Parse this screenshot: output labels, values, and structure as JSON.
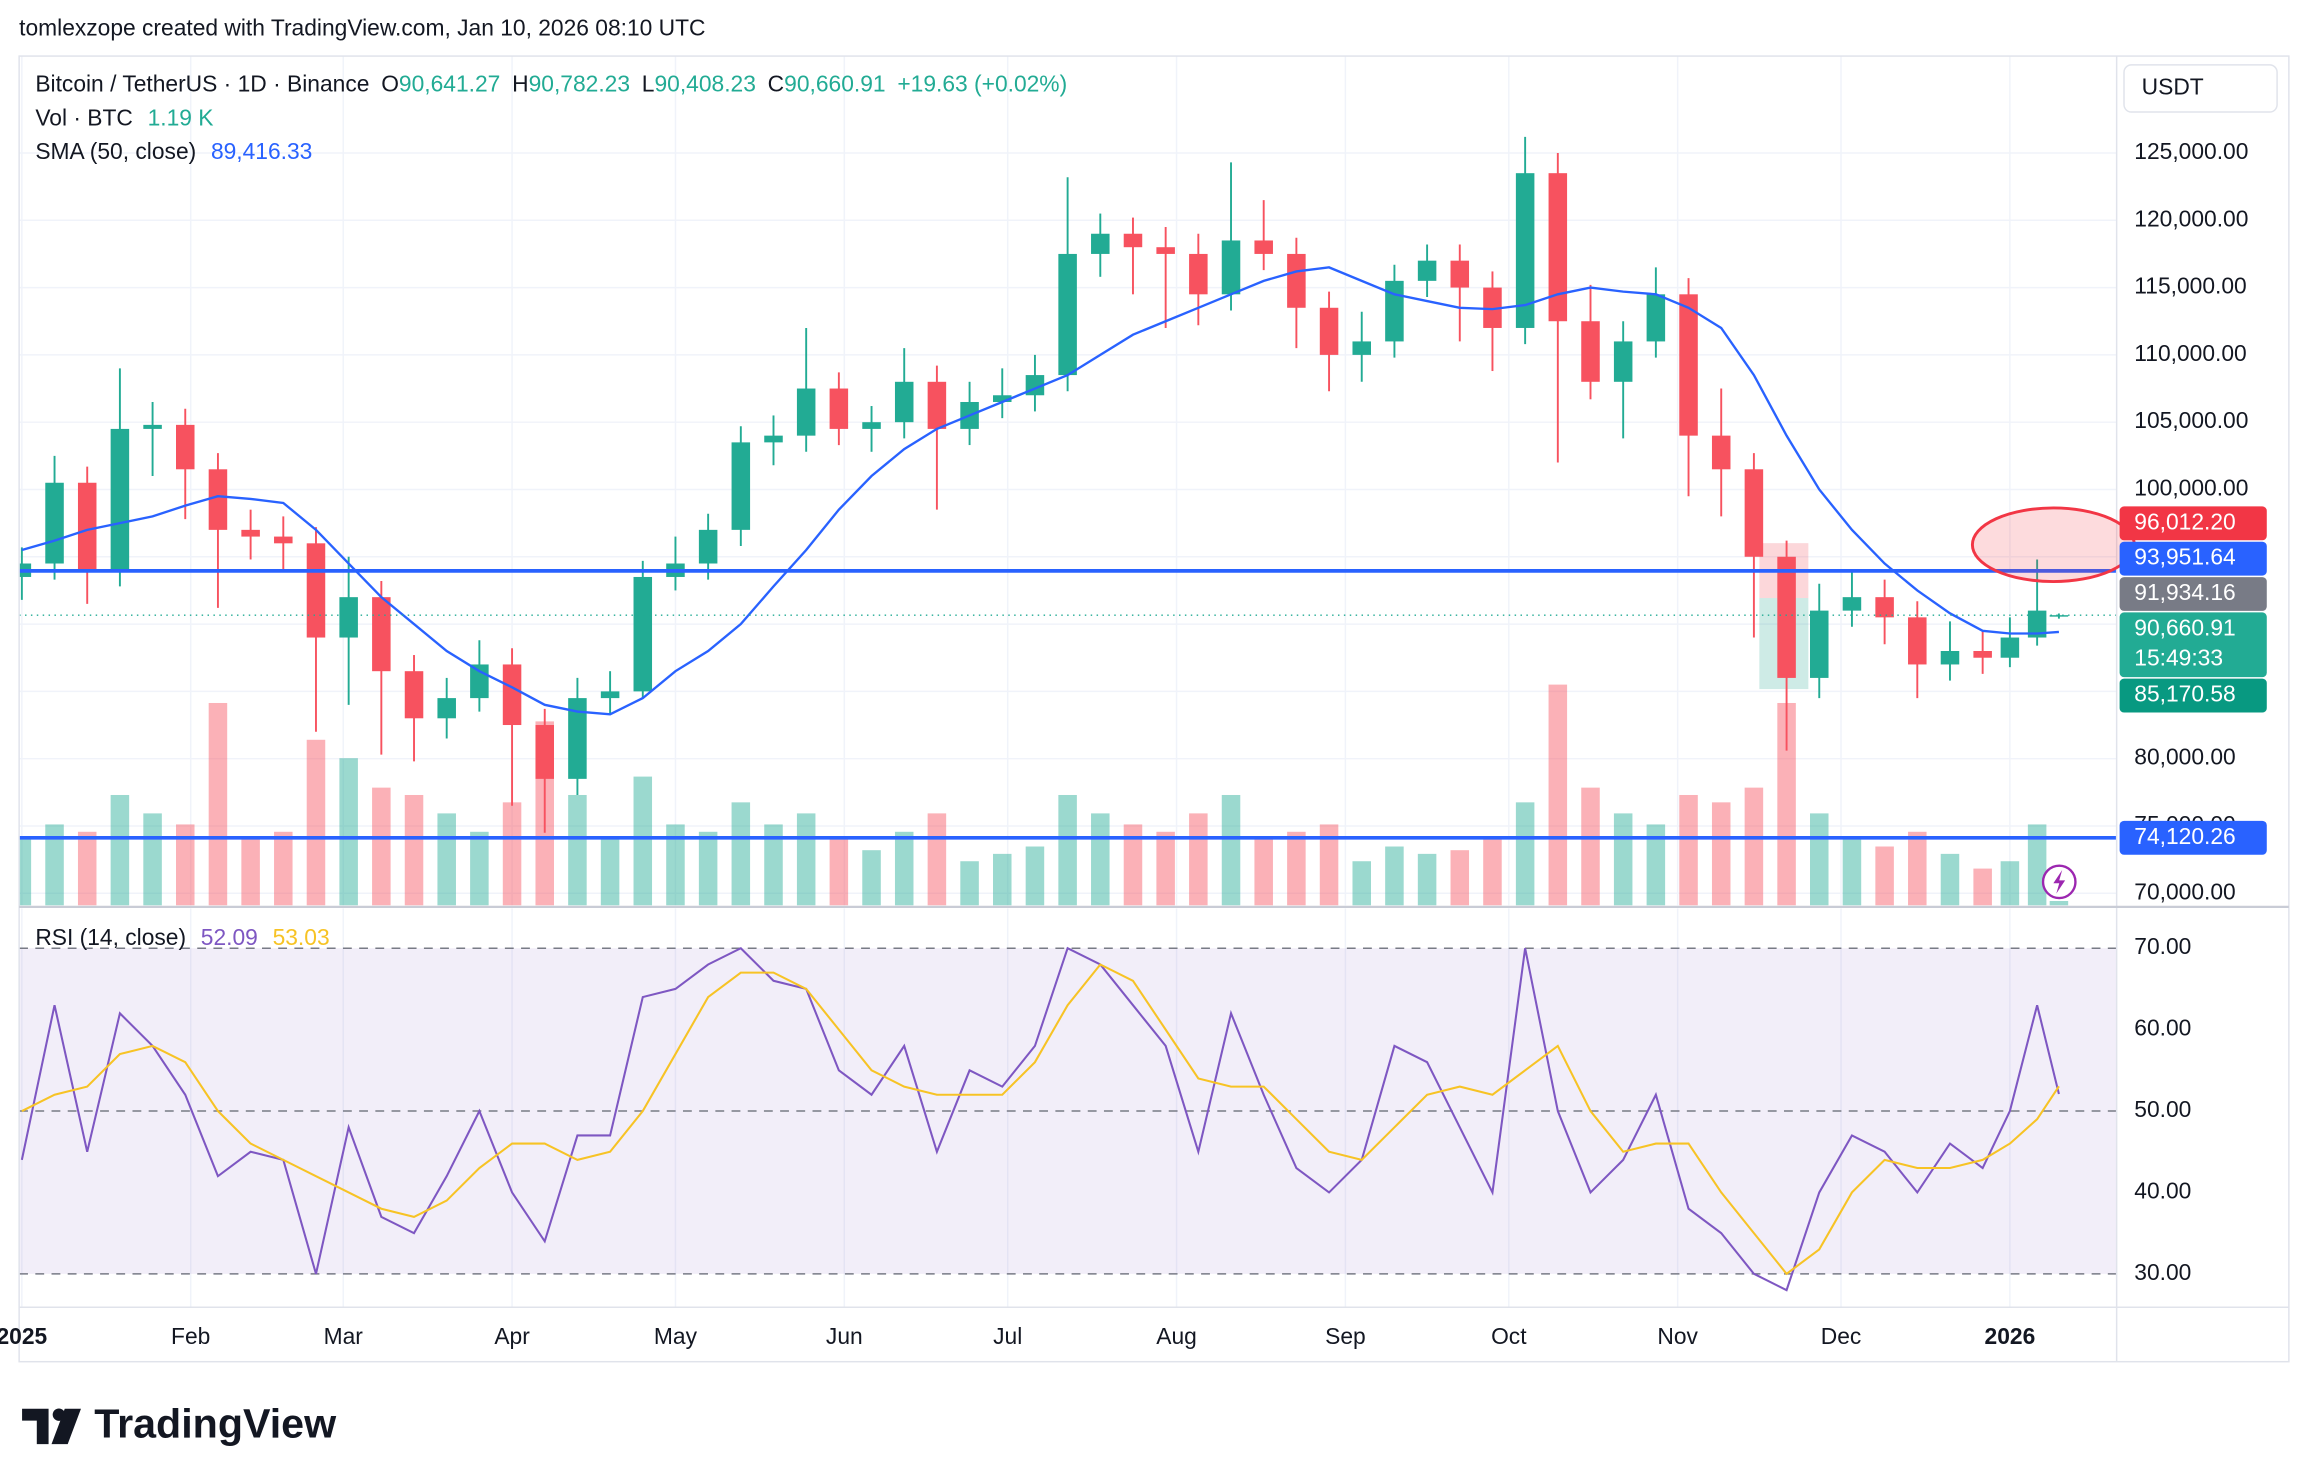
{
  "header": {
    "attribution": "tomlexzope created with TradingView.com, Jan 10, 2026 08:10 UTC",
    "brand": "TradingView"
  },
  "chart_data": [
    {
      "type": "candlestick",
      "title": "Bitcoin / TetherUS · 1D · Binance",
      "legend": [
        {
          "key": "O",
          "value": "90,641.27"
        },
        {
          "key": "H",
          "value": "90,782.23"
        },
        {
          "key": "L",
          "value": "90,408.23"
        },
        {
          "key": "C",
          "value": "90,660.91"
        }
      ],
      "change": "+19.63 (+0.02%)",
      "currency": "USDT",
      "up_color": "#22ab94",
      "down_color": "#f7525f",
      "x": [
        0,
        6,
        12,
        18,
        24,
        30,
        36,
        42,
        48,
        54,
        60,
        66,
        72,
        78,
        84,
        90,
        96,
        102,
        108,
        114,
        120,
        126,
        132,
        138,
        144,
        150,
        156,
        162,
        168,
        174,
        180,
        186,
        192,
        198,
        204,
        210,
        216,
        222,
        228,
        234,
        240,
        246,
        252,
        258,
        264,
        270,
        276,
        282,
        288,
        294,
        300,
        306,
        312,
        318,
        324,
        330,
        336,
        342,
        348,
        354,
        360,
        365,
        370,
        374
      ],
      "xlim": [
        -0.5,
        384.6
      ],
      "open": [
        93500,
        94500,
        100500,
        94000,
        104500,
        104800,
        101500,
        97000,
        96500,
        96000,
        89000,
        92000,
        86500,
        83000,
        84500,
        87000,
        82500,
        78500,
        84500,
        85000,
        93500,
        94500,
        97000,
        103500,
        104000,
        107500,
        104500,
        105000,
        108000,
        104500,
        106500,
        107000,
        108500,
        117500,
        119000,
        118000,
        117500,
        114500,
        118500,
        117500,
        113500,
        110000,
        111000,
        115500,
        117000,
        115000,
        112000,
        123500,
        112500,
        108000,
        111000,
        114500,
        104000,
        101500,
        95000,
        86000,
        91000,
        92000,
        90500,
        87000,
        88000,
        87500,
        89000,
        90641.27
      ],
      "high": [
        95700,
        102500,
        101700,
        109000,
        106500,
        106000,
        102700,
        98500,
        98000,
        97200,
        95000,
        93200,
        87700,
        86000,
        88800,
        88200,
        83700,
        86000,
        86500,
        94700,
        96500,
        98200,
        104700,
        105500,
        112000,
        108700,
        106200,
        110500,
        109200,
        108000,
        109000,
        110000,
        123200,
        120500,
        120200,
        119500,
        119000,
        124300,
        121500,
        118700,
        114700,
        113200,
        116700,
        118200,
        118200,
        116200,
        126200,
        125000,
        115200,
        112500,
        116500,
        115700,
        107500,
        102700,
        96200,
        93000,
        94000,
        93300,
        91700,
        90200,
        89500,
        90500,
        94800,
        90782.23
      ],
      "low": [
        91800,
        93300,
        91500,
        92800,
        101000,
        97800,
        91200,
        94800,
        94000,
        82000,
        84000,
        80300,
        79800,
        81500,
        83500,
        76500,
        74500,
        77300,
        83300,
        84500,
        92500,
        93300,
        95800,
        101800,
        102800,
        103300,
        102800,
        103800,
        98500,
        103300,
        105300,
        105800,
        107300,
        115800,
        114500,
        112000,
        112200,
        113300,
        116300,
        110500,
        107300,
        108000,
        109800,
        114300,
        111000,
        108800,
        110800,
        102000,
        106700,
        103800,
        109800,
        99500,
        98000,
        89000,
        80600,
        84500,
        89800,
        88500,
        84500,
        85800,
        86300,
        86800,
        88400,
        90408.23
      ],
      "close": [
        94500,
        100500,
        94000,
        104500,
        104800,
        101500,
        97000,
        96500,
        96000,
        89000,
        92000,
        86500,
        83000,
        84500,
        87000,
        82500,
        78500,
        84500,
        85000,
        93500,
        94500,
        97000,
        103500,
        104000,
        107500,
        104500,
        105000,
        108000,
        104500,
        106500,
        107000,
        108500,
        117500,
        119000,
        118000,
        117500,
        114500,
        118500,
        117500,
        113500,
        110000,
        111000,
        115500,
        117000,
        115000,
        112000,
        123500,
        112500,
        108000,
        111000,
        114500,
        104000,
        101500,
        95000,
        86000,
        91000,
        92000,
        90500,
        87000,
        88000,
        87500,
        89000,
        91000,
        90660.91
      ],
      "volume": {
        "name": "Vol · BTC",
        "value_label": "1.19 K",
        "values": [
          18,
          22,
          20,
          30,
          25,
          22,
          55,
          18,
          20,
          45,
          40,
          32,
          30,
          25,
          20,
          28,
          50,
          30,
          18,
          35,
          22,
          20,
          28,
          22,
          25,
          18,
          15,
          20,
          25,
          12,
          14,
          16,
          30,
          25,
          22,
          20,
          25,
          30,
          18,
          20,
          22,
          12,
          16,
          14,
          15,
          18,
          28,
          60,
          32,
          25,
          22,
          30,
          28,
          32,
          55,
          25,
          18,
          16,
          20,
          14,
          10,
          12,
          22,
          1.19
        ]
      },
      "sma": {
        "name": "SMA (50, close)",
        "value_label": "89,416.33",
        "color": "#2962ff",
        "values": [
          95500,
          96200,
          97000,
          97500,
          98000,
          98800,
          99500,
          99300,
          99000,
          97000,
          94500,
          92000,
          90000,
          88000,
          86500,
          85300,
          84000,
          83500,
          83300,
          84500,
          86500,
          88000,
          90000,
          92800,
          95500,
          98500,
          101000,
          103000,
          104500,
          105500,
          106500,
          107500,
          108500,
          110000,
          111500,
          112500,
          113500,
          114500,
          115500,
          116200,
          116500,
          115500,
          114500,
          114000,
          113500,
          113400,
          113700,
          114500,
          115000,
          114700,
          114500,
          113500,
          112000,
          108500,
          104000,
          100000,
          97000,
          94500,
          92500,
          90800,
          89500,
          89300,
          89300,
          89416.33
        ]
      },
      "ylim": [
        69100,
        132200
      ],
      "yticks": [
        {
          "value": 70000,
          "label": "70,000.00"
        },
        {
          "value": 75000,
          "label": "75,000.00"
        },
        {
          "value": 80000,
          "label": "80,000.00"
        },
        {
          "value": 85000,
          "label": "85,000.00"
        },
        {
          "value": 90000,
          "label": "90,000.00"
        },
        {
          "value": 95000,
          "label": "95,000.00"
        },
        {
          "value": 100000,
          "label": "100,000.00"
        },
        {
          "value": 105000,
          "label": "105,000.00"
        },
        {
          "value": 110000,
          "label": "110,000.00"
        },
        {
          "value": 115000,
          "label": "115,000.00"
        },
        {
          "value": 120000,
          "label": "120,000.00"
        },
        {
          "value": 125000,
          "label": "125,000.00"
        }
      ],
      "grid": true,
      "position": {
        "x": [
          319,
          328
        ],
        "stop": 96012.2,
        "entry": 91934.16,
        "target": 85170.58,
        "loss_color": "rgba(242,54,69,0.2)",
        "profit_color": "rgba(8,153,129,0.2)"
      },
      "price_labels": [
        {
          "value": 96012.2,
          "label": "96,012.20",
          "color": "#f23645"
        },
        {
          "value": 93951.64,
          "label": "93,951.64",
          "color": "#2962ff",
          "line": true
        },
        {
          "value": 91934.16,
          "label": "91,934.16",
          "color": "#787b86"
        },
        {
          "value": 90660.91,
          "label": "90,660.91",
          "sublabel": "15:49:33",
          "color": "#22ab94",
          "dotted": true
        },
        {
          "value": 85170.58,
          "label": "85,170.58",
          "color": "#089981"
        },
        {
          "value": 74120.26,
          "label": "74,120.26",
          "color": "#2962ff",
          "line": true
        }
      ]
    },
    {
      "type": "line",
      "x": [
        0,
        6,
        12,
        18,
        24,
        30,
        36,
        42,
        48,
        54,
        60,
        66,
        72,
        78,
        84,
        90,
        96,
        102,
        108,
        114,
        120,
        126,
        132,
        138,
        144,
        150,
        156,
        162,
        168,
        174,
        180,
        186,
        192,
        198,
        204,
        210,
        216,
        222,
        228,
        234,
        240,
        246,
        252,
        258,
        264,
        270,
        276,
        282,
        288,
        294,
        300,
        306,
        312,
        318,
        324,
        330,
        336,
        342,
        348,
        354,
        360,
        365,
        370,
        374
      ],
      "xlim": [
        -0.5,
        384.6
      ],
      "series": [
        {
          "name": "RSI (14, close)",
          "value_label": "52.09",
          "color": "#7e57c2",
          "values": [
            44,
            63,
            45,
            62,
            58,
            52,
            42,
            45,
            44,
            30,
            48,
            37,
            35,
            42,
            50,
            40,
            34,
            47,
            47,
            64,
            65,
            68,
            70,
            66,
            65,
            55,
            52,
            58,
            45,
            55,
            53,
            58,
            70,
            68,
            63,
            58,
            45,
            62,
            52,
            43,
            40,
            44,
            58,
            56,
            48,
            40,
            70,
            50,
            40,
            44,
            52,
            38,
            35,
            30,
            28,
            40,
            47,
            45,
            40,
            46,
            43,
            50,
            63,
            52.09
          ]
        },
        {
          "value_label": "53.03",
          "color": "#f7c325",
          "values": [
            50,
            52,
            53,
            57,
            58,
            56,
            50,
            46,
            44,
            42,
            40,
            38,
            37,
            39,
            43,
            46,
            46,
            44,
            45,
            50,
            57,
            64,
            67,
            67,
            65,
            60,
            55,
            53,
            52,
            52,
            52,
            56,
            63,
            68,
            66,
            60,
            54,
            53,
            53,
            49,
            45,
            44,
            48,
            52,
            53,
            52,
            55,
            58,
            50,
            45,
            46,
            46,
            40,
            35,
            30,
            33,
            40,
            44,
            43,
            43,
            44,
            46,
            49,
            53.03
          ]
        }
      ],
      "ylim": [
        25.9,
        74.9
      ],
      "yticks": [
        {
          "value": 30,
          "label": "30.00"
        },
        {
          "value": 40,
          "label": "40.00"
        },
        {
          "value": 50,
          "label": "50.00"
        },
        {
          "value": 60,
          "label": "60.00"
        },
        {
          "value": 70,
          "label": "70.00"
        }
      ],
      "levels": [
        70,
        50,
        30
      ],
      "xticks": [
        {
          "value": 0,
          "label": "2025"
        },
        {
          "value": 31,
          "label": "Feb"
        },
        {
          "value": 59,
          "label": "Mar"
        },
        {
          "value": 90,
          "label": "Apr"
        },
        {
          "value": 120,
          "label": "May"
        },
        {
          "value": 151,
          "label": "Jun"
        },
        {
          "value": 181,
          "label": "Jul"
        },
        {
          "value": 212,
          "label": "Aug"
        },
        {
          "value": 243,
          "label": "Sep"
        },
        {
          "value": 273,
          "label": "Oct"
        },
        {
          "value": 304,
          "label": "Nov"
        },
        {
          "value": 334,
          "label": "Dec"
        },
        {
          "value": 365,
          "label": "2026"
        }
      ]
    }
  ]
}
